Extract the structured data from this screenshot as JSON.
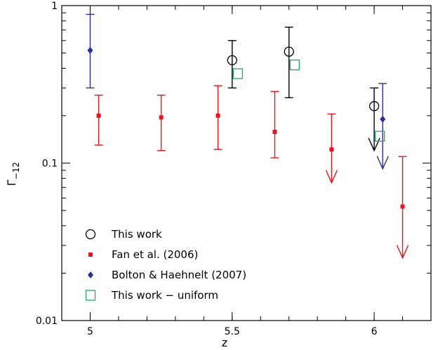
{
  "chart_data": {
    "type": "scatter",
    "title": "",
    "xlabel": "z",
    "ylabel_main": "Γ",
    "ylabel_sub": "−12",
    "xlim": [
      4.9,
      6.2
    ],
    "ylim": [
      0.01,
      1
    ],
    "yscale": "log",
    "grid": false,
    "legend_position": "lower-left",
    "xticks": [
      {
        "value": 5,
        "label": "5"
      },
      {
        "value": 5.5,
        "label": "5.5"
      },
      {
        "value": 6,
        "label": "6"
      }
    ],
    "yticks": [
      {
        "value": 0.01,
        "label": "0.01"
      },
      {
        "value": 0.1,
        "label": "0.1"
      },
      {
        "value": 1,
        "label": "1"
      }
    ],
    "series": [
      {
        "name": "This work",
        "marker": "circle",
        "color": "#000000",
        "points": [
          {
            "x": 5.5,
            "y": 0.45,
            "ylo": 0.3,
            "yhi": 0.6
          },
          {
            "x": 5.7,
            "y": 0.51,
            "ylo": 0.26,
            "yhi": 0.73
          },
          {
            "x": 6.0,
            "y": 0.23,
            "ylo": 0.12,
            "yhi": 0.3,
            "upper_limit": true
          }
        ]
      },
      {
        "name": "Fan et al. (2006)",
        "marker": "square-filled",
        "color": "#e8141e",
        "points": [
          {
            "x": 5.03,
            "y": 0.2,
            "ylo": 0.13,
            "yhi": 0.27
          },
          {
            "x": 5.25,
            "y": 0.195,
            "ylo": 0.12,
            "yhi": 0.27
          },
          {
            "x": 5.45,
            "y": 0.2,
            "ylo": 0.122,
            "yhi": 0.31
          },
          {
            "x": 5.65,
            "y": 0.158,
            "ylo": 0.108,
            "yhi": 0.285
          },
          {
            "x": 5.85,
            "y": 0.122,
            "ylo": 0.075,
            "yhi": 0.205,
            "upper_limit": true
          },
          {
            "x": 6.1,
            "y": 0.053,
            "ylo": 0.025,
            "yhi": 0.11,
            "upper_limit": true
          }
        ]
      },
      {
        "name": "Bolton & Haehnelt (2007)",
        "marker": "diamond",
        "color": "#2a2f96",
        "points": [
          {
            "x": 5.0,
            "y": 0.52,
            "ylo": 0.3,
            "yhi": 0.88
          },
          {
            "x": 6.03,
            "y": 0.19,
            "ylo": 0.092,
            "yhi": 0.32,
            "upper_limit": true
          }
        ]
      },
      {
        "name": "This work − uniform",
        "marker": "square-open",
        "color": "#22a86a",
        "points": [
          {
            "x": 5.52,
            "y": 0.37
          },
          {
            "x": 5.72,
            "y": 0.42
          },
          {
            "x": 6.02,
            "y": 0.148
          }
        ]
      }
    ]
  }
}
